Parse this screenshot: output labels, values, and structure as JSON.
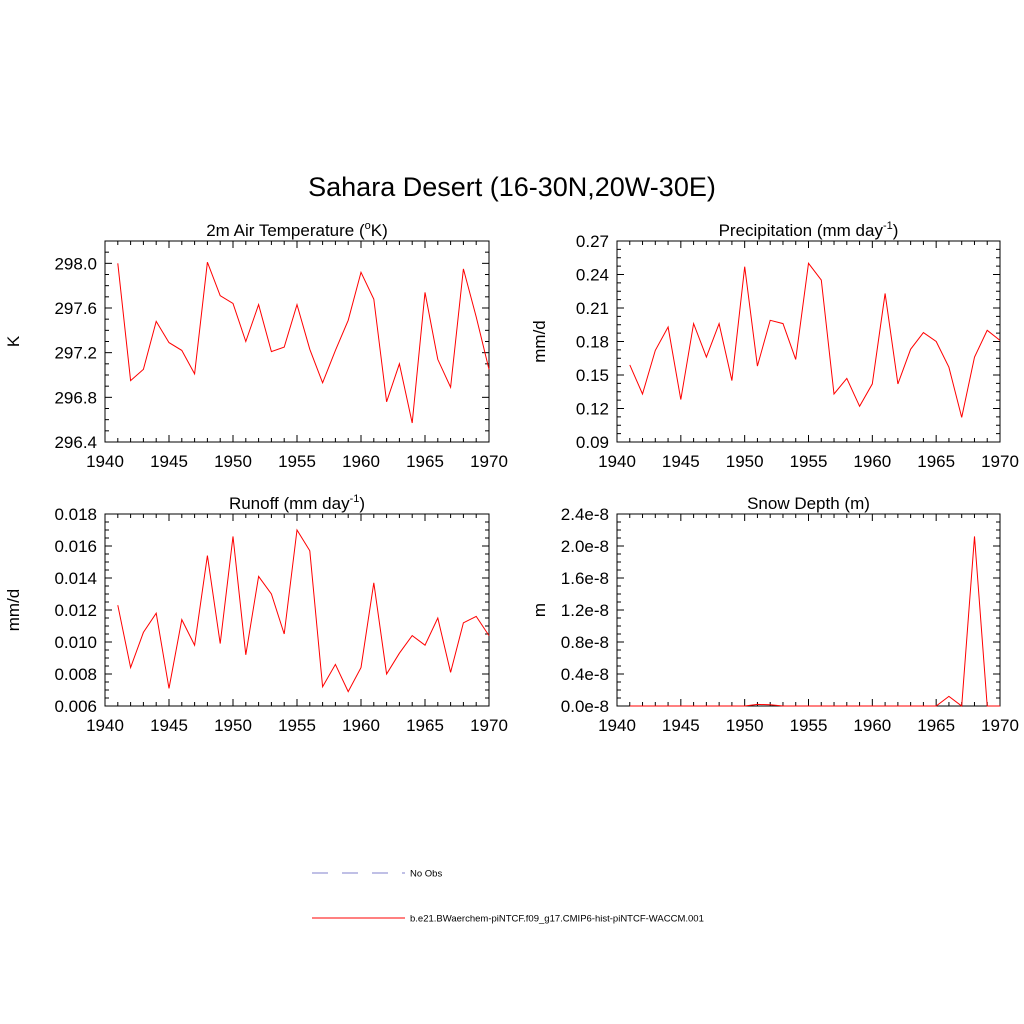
{
  "figure": {
    "title": "Sahara Desert (16-30N,20W-30E)",
    "legend": [
      {
        "label": "No Obs",
        "color": "#9b9bd8",
        "style": "dashed"
      },
      {
        "label": "b.e21.BWaerchem-piNTCF.f09_g17.CMIP6-hist-piNTCF-WACCM.001",
        "color": "#ff0000",
        "style": "solid"
      }
    ]
  },
  "chart_data": [
    {
      "type": "line",
      "title": "2m Air Temperature (°K)",
      "title_main": "2m Air Temperature (",
      "title_sup": "o",
      "title_end": "K)",
      "xlabel": "",
      "ylabel": "K",
      "xlim": [
        1940,
        1970
      ],
      "ylim": [
        296.4,
        298.2
      ],
      "xticks": [
        1940,
        1945,
        1950,
        1955,
        1960,
        1965,
        1970
      ],
      "yticks": [
        296.4,
        296.8,
        297.2,
        297.6,
        298.0
      ],
      "ytick_labels": [
        "296.4",
        "296.8",
        "297.2",
        "297.6",
        "298.0"
      ],
      "color": "#ff0000",
      "x": [
        1941,
        1942,
        1943,
        1944,
        1945,
        1946,
        1947,
        1948,
        1949,
        1950,
        1951,
        1952,
        1953,
        1954,
        1955,
        1956,
        1957,
        1958,
        1959,
        1960,
        1961,
        1962,
        1963,
        1964,
        1965,
        1966,
        1967,
        1968,
        1969,
        1970
      ],
      "y": [
        298.0,
        296.95,
        297.05,
        297.48,
        297.29,
        297.22,
        297.01,
        298.01,
        297.71,
        297.64,
        297.3,
        297.63,
        297.21,
        297.25,
        297.63,
        297.23,
        296.93,
        297.22,
        297.49,
        297.92,
        297.68,
        296.76,
        297.1,
        296.57,
        297.74,
        297.14,
        296.89,
        297.95,
        297.52,
        297.05
      ]
    },
    {
      "type": "line",
      "title": "Precipitation (mm day-1)",
      "title_main": "Precipitation (mm day",
      "title_sup": "-1",
      "title_end": ")",
      "xlabel": "",
      "ylabel": "mm/d",
      "xlim": [
        1940,
        1970
      ],
      "ylim": [
        0.09,
        0.27
      ],
      "xticks": [
        1940,
        1945,
        1950,
        1955,
        1960,
        1965,
        1970
      ],
      "yticks": [
        0.09,
        0.12,
        0.15,
        0.18,
        0.21,
        0.24,
        0.27
      ],
      "ytick_labels": [
        "0.09",
        "0.12",
        "0.15",
        "0.18",
        "0.21",
        "0.24",
        "0.27"
      ],
      "color": "#ff0000",
      "x": [
        1941,
        1942,
        1943,
        1944,
        1945,
        1946,
        1947,
        1948,
        1949,
        1950,
        1951,
        1952,
        1953,
        1954,
        1955,
        1956,
        1957,
        1958,
        1959,
        1960,
        1961,
        1962,
        1963,
        1964,
        1965,
        1966,
        1967,
        1968,
        1969,
        1970
      ],
      "y": [
        0.159,
        0.133,
        0.172,
        0.193,
        0.128,
        0.196,
        0.166,
        0.196,
        0.145,
        0.247,
        0.158,
        0.199,
        0.196,
        0.164,
        0.25,
        0.235,
        0.133,
        0.147,
        0.122,
        0.142,
        0.223,
        0.142,
        0.173,
        0.188,
        0.18,
        0.157,
        0.112,
        0.166,
        0.19,
        0.181
      ]
    },
    {
      "type": "line",
      "title": "Runoff (mm day-1)",
      "title_main": "Runoff (mm day",
      "title_sup": "-1",
      "title_end": ")",
      "xlabel": "",
      "ylabel": "mm/d",
      "xlim": [
        1940,
        1970
      ],
      "ylim": [
        0.006,
        0.018
      ],
      "xticks": [
        1940,
        1945,
        1950,
        1955,
        1960,
        1965,
        1970
      ],
      "yticks": [
        0.006,
        0.008,
        0.01,
        0.012,
        0.014,
        0.016,
        0.018
      ],
      "ytick_labels": [
        "0.006",
        "0.008",
        "0.010",
        "0.012",
        "0.014",
        "0.016",
        "0.018"
      ],
      "color": "#ff0000",
      "x": [
        1941,
        1942,
        1943,
        1944,
        1945,
        1946,
        1947,
        1948,
        1949,
        1950,
        1951,
        1952,
        1953,
        1954,
        1955,
        1956,
        1957,
        1958,
        1959,
        1960,
        1961,
        1962,
        1963,
        1964,
        1965,
        1966,
        1967,
        1968,
        1969,
        1970
      ],
      "y": [
        0.0123,
        0.0084,
        0.0106,
        0.0118,
        0.0071,
        0.0114,
        0.0098,
        0.0154,
        0.0099,
        0.0166,
        0.0092,
        0.0141,
        0.013,
        0.0105,
        0.017,
        0.0157,
        0.0072,
        0.0086,
        0.0069,
        0.0084,
        0.0137,
        0.008,
        0.0093,
        0.0104,
        0.0098,
        0.0115,
        0.0081,
        0.0112,
        0.0116,
        0.0104
      ]
    },
    {
      "type": "line",
      "title": "Snow Depth (m)",
      "title_main": "Snow Depth (m)",
      "title_sup": "",
      "title_end": "",
      "xlabel": "",
      "ylabel": "m",
      "xlim": [
        1940,
        1970
      ],
      "ylim": [
        0,
        2.4e-08
      ],
      "xticks": [
        1940,
        1945,
        1950,
        1955,
        1960,
        1965,
        1970
      ],
      "yticks": [
        0,
        4e-09,
        8e-09,
        1.2e-08,
        1.6e-08,
        2e-08,
        2.4e-08
      ],
      "ytick_labels": [
        "0.0e-8",
        "0.4e-8",
        "0.8e-8",
        "1.2e-8",
        "1.6e-8",
        "2.0e-8",
        "2.4e-8"
      ],
      "color": "#ff0000",
      "x": [
        1941,
        1942,
        1943,
        1944,
        1945,
        1946,
        1947,
        1948,
        1949,
        1950,
        1951,
        1952,
        1953,
        1954,
        1955,
        1956,
        1957,
        1958,
        1959,
        1960,
        1961,
        1962,
        1963,
        1964,
        1965,
        1966,
        1967,
        1968,
        1969,
        1970
      ],
      "y": [
        0,
        0,
        0,
        0,
        0,
        0,
        0,
        0,
        0,
        0,
        2e-10,
        1.5e-10,
        0,
        0,
        0,
        0,
        0,
        0,
        0,
        0,
        0,
        0,
        0,
        0,
        0,
        1.2e-09,
        0,
        2.12e-08,
        0,
        0
      ]
    }
  ]
}
